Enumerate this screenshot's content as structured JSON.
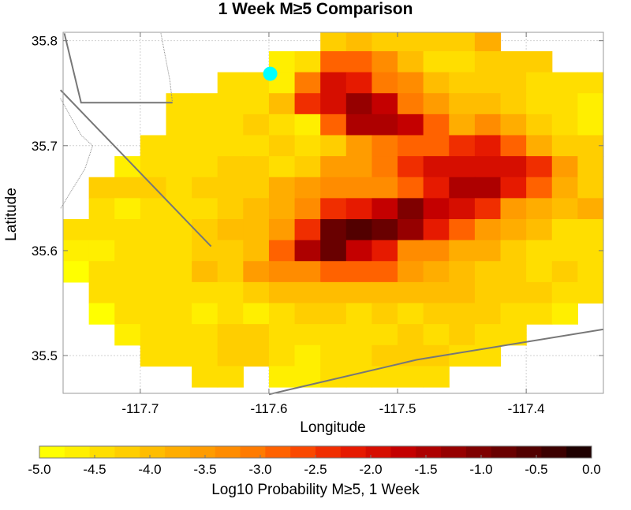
{
  "chart_data": {
    "type": "heatmap",
    "title": "1 Week M≥5 Comparison",
    "xlabel": "Longitude",
    "ylabel": "Latitude",
    "xlim": [
      -117.76,
      -117.34
    ],
    "ylim": [
      35.464,
      35.808
    ],
    "x_ticks": [
      -117.7,
      -117.6,
      -117.5,
      -117.4
    ],
    "x_tick_labels": [
      "-117.7",
      "-117.6",
      "-117.5",
      "-117.4"
    ],
    "y_ticks": [
      35.5,
      35.6,
      35.7,
      35.8
    ],
    "y_tick_labels": [
      "35.5",
      "35.6",
      "35.7",
      "35.8"
    ],
    "grid": true,
    "cell_size": [
      0.02,
      0.02
    ],
    "grid_origin": {
      "lon": -117.76,
      "lat_top": 35.81
    },
    "rows_codes": [
      "          DEDDDDF      ",
      "        BCJJHECCDDD    ",
      "      CCBIMLIHEDDDCCC  ",
      "    CCCCEKMPNIGEEDCCBB ",
      "    CCCDCBJOONJFHFDCBBC",
      "   CCCCCDCDGIJJKLJFDDCA",
      "  BCCCDDCDGGIKMMMMKGDCC",
      " DDDCDDDFGHHHJLOOLJFDDC",
      " CBCCCDEFHKLNQNMKGFEFDC",
      "CCCCCDEEGKRSRPLJGFECCCC",
      "BBCCCDDEJORNLHHFFDCCCDC",
      "ACCCCEDGHHJJJGFEDDCDCA ",
      " CCCCCCDEEEEEEEEDDDCC  ",
      " ACCCBCBCDDCDCDDDCCB   ",
      "  BCCCDDCCCCCDCDCC     ",
      "   CCCDDCBCCDDDCC      ",
      "     CC BBCCCCC        "
    ],
    "code_scale": "A=-5.0 ... T=-0.25 in steps of 0.25; blank = no value",
    "observed_event": {
      "lon": -117.599,
      "lat": 35.7685,
      "color": "#00ffff"
    },
    "colorbar": {
      "label": "Log10 Probability M≥5, 1 Week",
      "min": -5.0,
      "max": 0.0,
      "tick_values": [
        -5.0,
        -4.5,
        -4.0,
        -3.5,
        -3.0,
        -2.5,
        -2.0,
        -1.5,
        -1.0,
        -0.5,
        0.0
      ],
      "tick_labels": [
        "-5.0",
        "-4.5",
        "-4.0",
        "-3.5",
        "-3.0",
        "-2.5",
        "-2.0",
        "-1.5",
        "-1.0",
        "-0.5",
        "0.0"
      ],
      "colors": [
        "#ffff00",
        "#ffef00",
        "#ffde00",
        "#ffce00",
        "#ffbd00",
        "#ffad00",
        "#ff9c00",
        "#ff8c00",
        "#ff7b00",
        "#ff6200",
        "#fa4800",
        "#f02e00",
        "#e61a00",
        "#d60e00",
        "#c40000",
        "#ad0000",
        "#960000",
        "#7f0000",
        "#690000",
        "#520000",
        "#3c0000",
        "#1e0000"
      ]
    },
    "fault_lines": [
      [
        [
          -117.759,
          35.807
        ],
        [
          -117.746,
          35.741
        ],
        [
          -117.675,
          35.741
        ]
      ],
      [
        [
          -117.762,
          35.753
        ],
        [
          -117.645,
          35.604
        ]
      ],
      [
        [
          -117.6,
          35.463
        ],
        [
          -117.485,
          35.496
        ],
        [
          -117.34,
          35.525
        ]
      ],
      [
        [
          -117.684,
          35.807
        ],
        [
          -117.677,
          35.762
        ],
        [
          -117.675,
          35.741
        ]
      ],
      [
        [
          -117.762,
          35.745
        ],
        [
          -117.746,
          35.71
        ],
        [
          -117.737,
          35.7
        ],
        [
          -117.743,
          35.678
        ],
        [
          -117.762,
          35.64
        ]
      ]
    ]
  }
}
